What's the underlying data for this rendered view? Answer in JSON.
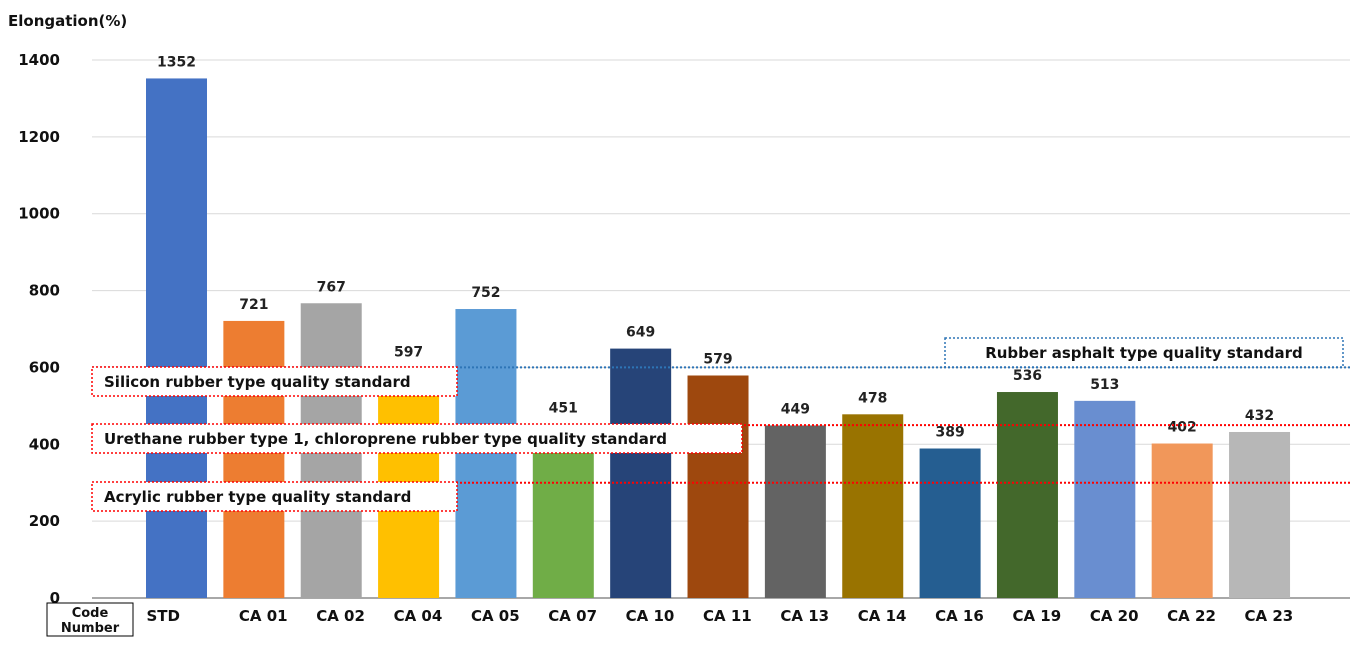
{
  "chart_data": {
    "type": "bar",
    "ylabel": "Elongation(%)",
    "ylim": [
      0,
      1400
    ],
    "yticks": [
      0,
      200,
      400,
      600,
      800,
      1000,
      1200,
      1400
    ],
    "grid": true,
    "x_header": [
      "Code",
      "Number"
    ],
    "categories": [
      "STD",
      "CA 01",
      "CA 02",
      "CA 04",
      "CA 05",
      "CA 07",
      "CA 10",
      "CA 11",
      "CA 13",
      "CA 14",
      "CA 16",
      "CA 19",
      "CA 20",
      "CA 22",
      "CA 23"
    ],
    "values": [
      1352,
      721,
      767,
      597,
      752,
      451,
      649,
      579,
      449,
      478,
      389,
      536,
      513,
      402,
      432
    ],
    "colors": [
      "#4472c4",
      "#ed7d31",
      "#a5a5a5",
      "#ffc000",
      "#5b9bd5",
      "#70ad47",
      "#264478",
      "#9e480e",
      "#636363",
      "#997300",
      "#255e91",
      "#43682b",
      "#698ed0",
      "#f1975a",
      "#b7b7b7"
    ],
    "standards": [
      {
        "label": "Rubber asphalt type quality standard",
        "value": 600,
        "color": "#2e75b6"
      },
      {
        "label": "Silicon rubber type quality standard",
        "value": 600,
        "color": "#ff0000"
      },
      {
        "label": "Urethane rubber type 1, chloroprene rubber type quality standard",
        "value": 450,
        "color": "#ff0000"
      },
      {
        "label": "Acrylic rubber type quality standard",
        "value": 300,
        "color": "#ff0000"
      }
    ]
  }
}
